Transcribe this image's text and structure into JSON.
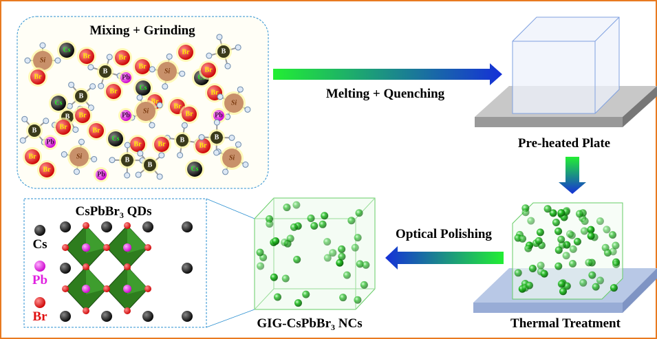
{
  "mixing": {
    "title": "Mixing + Grinding",
    "atoms": [
      "Si",
      "Cs",
      "Br",
      "Br",
      "B",
      "B",
      "Br",
      "Br",
      "Si",
      "Cs",
      "Br",
      "Br",
      "B",
      "Pb",
      "Br",
      "Cs",
      "Br",
      "B",
      "Cs",
      "Br",
      "Si",
      "Pb",
      "Br",
      "Br",
      "Si",
      "Br",
      "B",
      "Pb",
      "Br",
      "Cs",
      "B",
      "Br",
      "Br",
      "B",
      "Br",
      "Si",
      "Br",
      "B",
      "Cs",
      "Br",
      "Pb",
      "Si",
      "Br",
      "Pb",
      "B"
    ]
  },
  "steps": {
    "melting": "Melting + Quenching",
    "plate": "Pre-heated Plate",
    "polishing": "Optical Polishing",
    "thermal": "Thermal Treatment"
  },
  "product": {
    "pre": "GIG-CsPbBr",
    "sub": "3",
    "post": " NCs"
  },
  "qd_box": {
    "pre": "CsPbBr",
    "sub": "3",
    "post": " QDs",
    "legend": [
      "Cs",
      "Pb",
      "Br"
    ]
  }
}
